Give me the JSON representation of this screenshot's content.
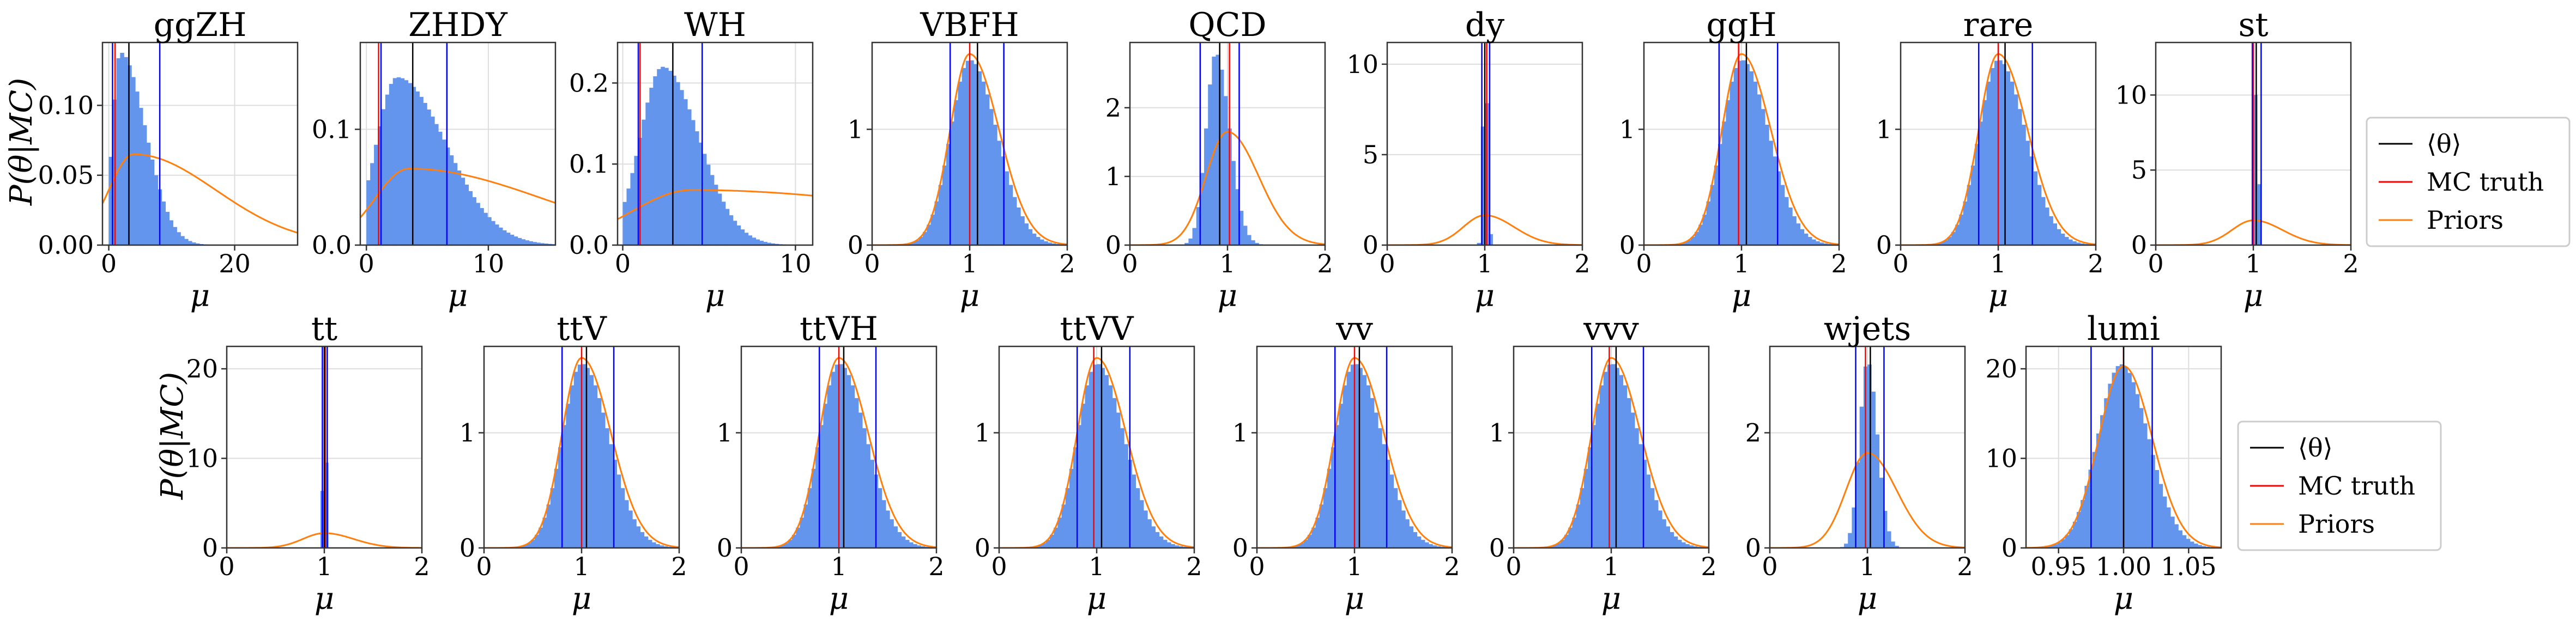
{
  "colors": {
    "hist": "#6495ed",
    "mean": "#000000",
    "truth": "#ff0000",
    "prior": "#ff7f0e",
    "interval": "#0000ff",
    "grid": "#dddddd"
  },
  "ylabel": "P(θ|MC)",
  "legend": {
    "mean": "⟨θ⟩",
    "truth": "MC truth",
    "priors": "Priors"
  },
  "chart_data": [
    {
      "type": "histogram",
      "title": "ggZH",
      "xlabel": "μ",
      "xlim": [
        -1,
        30
      ],
      "ylim": [
        0,
        0.145
      ],
      "xticks": [
        0,
        20
      ],
      "xtick_labels": [
        "0",
        "20"
      ],
      "yticks": [
        0,
        0.05,
        0.1
      ],
      "ytick_labels": [
        "0.00",
        "0.05",
        "0.10"
      ],
      "hist": {
        "shape": "skew",
        "peak": 1.8,
        "sl": 1.2,
        "sr": 4.0,
        "height": 0.138,
        "range": [
          0,
          30
        ],
        "bins": 50
      },
      "prior": {
        "shape": "skew",
        "peak": 4,
        "sl": 4,
        "sr": 13,
        "height": 0.065
      },
      "mean": 3.2,
      "truth": 1.0,
      "interval": [
        0.6,
        8.1
      ],
      "ylabel": true,
      "row": 0,
      "col": 0
    },
    {
      "type": "histogram",
      "title": "ZHDY",
      "xlabel": "μ",
      "xlim": [
        -0.5,
        15.5
      ],
      "ylim": [
        0,
        0.175
      ],
      "xticks": [
        0,
        10
      ],
      "xtick_labels": [
        "0",
        "10"
      ],
      "yticks": [
        0,
        0.1
      ],
      "ytick_labels": [
        "0.0",
        "0.1"
      ],
      "hist": {
        "shape": "skew",
        "peak": 2.5,
        "sl": 1.7,
        "sr": 4.0,
        "height": 0.145,
        "range": [
          0,
          15.5
        ],
        "bins": 50
      },
      "prior": {
        "shape": "skew",
        "peak": 3.5,
        "sl": 2.8,
        "sr": 11,
        "height": 0.066
      },
      "mean": 3.8,
      "truth": 1.0,
      "interval": [
        1.2,
        6.6
      ],
      "row": 0,
      "col": 1
    },
    {
      "type": "histogram",
      "title": "WH",
      "xlabel": "μ",
      "xlim": [
        -0.3,
        11
      ],
      "ylim": [
        0,
        0.25
      ],
      "xticks": [
        0,
        10
      ],
      "xtick_labels": [
        "0",
        "10"
      ],
      "yticks": [
        0,
        0.1,
        0.2
      ],
      "ytick_labels": [
        "0.0",
        "0.1",
        "0.2"
      ],
      "hist": {
        "shape": "skew",
        "peak": 2.3,
        "sl": 1.3,
        "sr": 2.1,
        "height": 0.22,
        "range": [
          0,
          11
        ],
        "bins": 50
      },
      "prior": {
        "shape": "skew",
        "peak": 4,
        "sl": 3.5,
        "sr": 15,
        "height": 0.068
      },
      "mean": 2.9,
      "truth": 1.0,
      "interval": [
        0.9,
        4.6
      ],
      "row": 0,
      "col": 2
    },
    {
      "type": "histogram",
      "title": "VBFH",
      "xlabel": "μ",
      "xlim": [
        0,
        2
      ],
      "ylim": [
        0,
        1.75
      ],
      "xticks": [
        0,
        1,
        2
      ],
      "xtick_labels": [
        "0",
        "1",
        "2"
      ],
      "yticks": [
        0,
        1
      ],
      "ytick_labels": [
        "0",
        "1"
      ],
      "hist": {
        "shape": "skew",
        "peak": 1.0,
        "sl": 0.2,
        "sr": 0.28,
        "height": 1.6,
        "range": [
          0,
          2
        ],
        "bins": 50
      },
      "prior": {
        "shape": "skew",
        "peak": 1.0,
        "sl": 0.2,
        "sr": 0.3,
        "height": 1.65
      },
      "mean": 1.08,
      "truth": 1.0,
      "interval": [
        0.8,
        1.35
      ],
      "row": 0,
      "col": 3
    },
    {
      "type": "histogram",
      "title": "QCD",
      "xlabel": "μ",
      "xlim": [
        0,
        2
      ],
      "ylim": [
        0,
        2.95
      ],
      "xticks": [
        0,
        1,
        2
      ],
      "xtick_labels": [
        "0",
        "1",
        "2"
      ],
      "yticks": [
        0,
        1,
        2
      ],
      "ytick_labels": [
        "0",
        "1",
        "2"
      ],
      "hist": {
        "shape": "skew",
        "peak": 0.88,
        "sl": 0.1,
        "sr": 0.14,
        "height": 2.8,
        "range": [
          0,
          2
        ],
        "bins": 50
      },
      "prior": {
        "shape": "skew",
        "peak": 1.0,
        "sl": 0.22,
        "sr": 0.32,
        "height": 1.65
      },
      "mean": 0.92,
      "truth": 1.02,
      "interval": [
        0.72,
        1.12
      ],
      "row": 0,
      "col": 4
    },
    {
      "type": "histogram",
      "title": "dy",
      "xlabel": "μ",
      "xlim": [
        0,
        2
      ],
      "ylim": [
        0,
        11.2
      ],
      "xticks": [
        0,
        1,
        2
      ],
      "xtick_labels": [
        "0",
        "1",
        "2"
      ],
      "yticks": [
        0,
        5,
        10
      ],
      "ytick_labels": [
        "0",
        "5",
        "10"
      ],
      "hist": {
        "shape": "skew",
        "peak": 1.0,
        "sl": 0.02,
        "sr": 0.025,
        "height": 10.8,
        "range": [
          0,
          2
        ],
        "bins": 50
      },
      "prior": {
        "shape": "skew",
        "peak": 1.0,
        "sl": 0.22,
        "sr": 0.3,
        "height": 1.65
      },
      "mean": 1.0,
      "truth": 1.02,
      "interval": [
        0.97,
        1.05
      ],
      "row": 0,
      "col": 5
    },
    {
      "type": "histogram",
      "title": "ggH",
      "xlabel": "μ",
      "xlim": [
        0,
        2
      ],
      "ylim": [
        0,
        1.75
      ],
      "xticks": [
        0,
        1,
        2
      ],
      "xtick_labels": [
        "0",
        "1",
        "2"
      ],
      "yticks": [
        0,
        1
      ],
      "ytick_labels": [
        "0",
        "1"
      ],
      "hist": {
        "shape": "skew",
        "peak": 1.0,
        "sl": 0.2,
        "sr": 0.28,
        "height": 1.6,
        "range": [
          0,
          2
        ],
        "bins": 50
      },
      "prior": {
        "shape": "skew",
        "peak": 1.0,
        "sl": 0.2,
        "sr": 0.3,
        "height": 1.65
      },
      "mean": 1.05,
      "truth": 0.97,
      "interval": [
        0.77,
        1.37
      ],
      "row": 0,
      "col": 6
    },
    {
      "type": "histogram",
      "title": "rare",
      "xlabel": "μ",
      "xlim": [
        0,
        2
      ],
      "ylim": [
        0,
        1.75
      ],
      "xticks": [
        0,
        1,
        2
      ],
      "xtick_labels": [
        "0",
        "1",
        "2"
      ],
      "yticks": [
        0,
        1
      ],
      "ytick_labels": [
        "0",
        "1"
      ],
      "hist": {
        "shape": "skew",
        "peak": 1.0,
        "sl": 0.2,
        "sr": 0.28,
        "height": 1.6,
        "range": [
          0,
          2
        ],
        "bins": 50
      },
      "prior": {
        "shape": "skew",
        "peak": 1.0,
        "sl": 0.2,
        "sr": 0.3,
        "height": 1.65
      },
      "mean": 1.07,
      "truth": 1.0,
      "interval": [
        0.8,
        1.35
      ],
      "row": 0,
      "col": 7
    },
    {
      "type": "histogram",
      "title": "st",
      "xlabel": "μ",
      "xlim": [
        0,
        2
      ],
      "ylim": [
        0,
        13.5
      ],
      "xticks": [
        0,
        1,
        2
      ],
      "xtick_labels": [
        "0",
        "1",
        "2"
      ],
      "yticks": [
        0,
        5,
        10
      ],
      "ytick_labels": [
        "0",
        "5",
        "10"
      ],
      "hist": {
        "shape": "skew",
        "peak": 1.03,
        "sl": 0.015,
        "sr": 0.02,
        "height": 12.5,
        "range": [
          0,
          2
        ],
        "bins": 50
      },
      "prior": {
        "shape": "skew",
        "peak": 1.0,
        "sl": 0.22,
        "sr": 0.3,
        "height": 1.65
      },
      "mean": 1.03,
      "truth": 1.0,
      "interval": [
        0.99,
        1.08
      ],
      "row": 0,
      "col": 8
    },
    {
      "type": "histogram",
      "title": "tt",
      "xlabel": "μ",
      "xlim": [
        0,
        2
      ],
      "ylim": [
        0,
        22.5
      ],
      "xticks": [
        0,
        1,
        2
      ],
      "xtick_labels": [
        "0",
        "1",
        "2"
      ],
      "yticks": [
        0,
        10,
        20
      ],
      "ytick_labels": [
        "0",
        "10",
        "20"
      ],
      "hist": {
        "shape": "skew",
        "peak": 1.0,
        "sl": 0.013,
        "sr": 0.016,
        "height": 20.8,
        "range": [
          0,
          2
        ],
        "bins": 50
      },
      "prior": {
        "shape": "skew",
        "peak": 1.0,
        "sl": 0.22,
        "sr": 0.3,
        "height": 1.65
      },
      "mean": 1.0,
      "truth": 1.01,
      "interval": [
        0.98,
        1.03
      ],
      "ylabel": true,
      "row": 1,
      "col": 0
    },
    {
      "type": "histogram",
      "title": "ttV",
      "xlabel": "μ",
      "xlim": [
        0,
        2
      ],
      "ylim": [
        0,
        1.75
      ],
      "xticks": [
        0,
        1,
        2
      ],
      "xtick_labels": [
        "0",
        "1",
        "2"
      ],
      "yticks": [
        0,
        1
      ],
      "ytick_labels": [
        "0",
        "1"
      ],
      "hist": {
        "shape": "skew",
        "peak": 1.0,
        "sl": 0.2,
        "sr": 0.28,
        "height": 1.6,
        "range": [
          0,
          2
        ],
        "bins": 50
      },
      "prior": {
        "shape": "skew",
        "peak": 1.0,
        "sl": 0.2,
        "sr": 0.3,
        "height": 1.65
      },
      "mean": 1.05,
      "truth": 1.0,
      "interval": [
        0.8,
        1.33
      ],
      "row": 1,
      "col": 1
    },
    {
      "type": "histogram",
      "title": "ttVH",
      "xlabel": "μ",
      "xlim": [
        0,
        2
      ],
      "ylim": [
        0,
        1.75
      ],
      "xticks": [
        0,
        1,
        2
      ],
      "xtick_labels": [
        "0",
        "1",
        "2"
      ],
      "yticks": [
        0,
        1
      ],
      "ytick_labels": [
        "0",
        "1"
      ],
      "hist": {
        "shape": "skew",
        "peak": 1.0,
        "sl": 0.2,
        "sr": 0.28,
        "height": 1.6,
        "range": [
          0,
          2
        ],
        "bins": 50
      },
      "prior": {
        "shape": "skew",
        "peak": 1.0,
        "sl": 0.2,
        "sr": 0.3,
        "height": 1.65
      },
      "mean": 1.05,
      "truth": 1.0,
      "interval": [
        0.8,
        1.38
      ],
      "row": 1,
      "col": 2
    },
    {
      "type": "histogram",
      "title": "ttVV",
      "xlabel": "μ",
      "xlim": [
        0,
        2
      ],
      "ylim": [
        0,
        1.75
      ],
      "xticks": [
        0,
        1,
        2
      ],
      "xtick_labels": [
        "0",
        "1",
        "2"
      ],
      "yticks": [
        0,
        1
      ],
      "ytick_labels": [
        "0",
        "1"
      ],
      "hist": {
        "shape": "skew",
        "peak": 1.0,
        "sl": 0.2,
        "sr": 0.28,
        "height": 1.6,
        "range": [
          0,
          2
        ],
        "bins": 50
      },
      "prior": {
        "shape": "skew",
        "peak": 1.0,
        "sl": 0.2,
        "sr": 0.3,
        "height": 1.65
      },
      "mean": 1.05,
      "truth": 0.97,
      "interval": [
        0.8,
        1.34
      ],
      "row": 1,
      "col": 3
    },
    {
      "type": "histogram",
      "title": "vv",
      "xlabel": "μ",
      "xlim": [
        0,
        2
      ],
      "ylim": [
        0,
        1.75
      ],
      "xticks": [
        0,
        1,
        2
      ],
      "xtick_labels": [
        "0",
        "1",
        "2"
      ],
      "yticks": [
        0,
        1
      ],
      "ytick_labels": [
        "0",
        "1"
      ],
      "hist": {
        "shape": "skew",
        "peak": 1.0,
        "sl": 0.2,
        "sr": 0.28,
        "height": 1.6,
        "range": [
          0,
          2
        ],
        "bins": 50
      },
      "prior": {
        "shape": "skew",
        "peak": 1.0,
        "sl": 0.2,
        "sr": 0.3,
        "height": 1.65
      },
      "mean": 1.05,
      "truth": 1.0,
      "interval": [
        0.8,
        1.33
      ],
      "row": 1,
      "col": 4
    },
    {
      "type": "histogram",
      "title": "vvv",
      "xlabel": "μ",
      "xlim": [
        0,
        2
      ],
      "ylim": [
        0,
        1.75
      ],
      "xticks": [
        0,
        1,
        2
      ],
      "xtick_labels": [
        "0",
        "1",
        "2"
      ],
      "yticks": [
        0,
        1
      ],
      "ytick_labels": [
        "0",
        "1"
      ],
      "hist": {
        "shape": "skew",
        "peak": 1.0,
        "sl": 0.2,
        "sr": 0.28,
        "height": 1.6,
        "range": [
          0,
          2
        ],
        "bins": 50
      },
      "prior": {
        "shape": "skew",
        "peak": 1.0,
        "sl": 0.2,
        "sr": 0.3,
        "height": 1.65
      },
      "mean": 1.05,
      "truth": 0.98,
      "interval": [
        0.8,
        1.33
      ],
      "row": 1,
      "col": 5
    },
    {
      "type": "histogram",
      "title": "wjets",
      "xlabel": "μ",
      "xlim": [
        0,
        2
      ],
      "ylim": [
        0,
        3.5
      ],
      "xticks": [
        0,
        1,
        2
      ],
      "xtick_labels": [
        "0",
        "1",
        "2"
      ],
      "yticks": [
        0,
        2
      ],
      "ytick_labels": [
        "0",
        "2"
      ],
      "hist": {
        "shape": "skew",
        "peak": 1.0,
        "sl": 0.08,
        "sr": 0.1,
        "height": 3.25,
        "range": [
          0,
          2
        ],
        "bins": 50
      },
      "prior": {
        "shape": "skew",
        "peak": 1.0,
        "sl": 0.22,
        "sr": 0.3,
        "height": 1.65
      },
      "mean": 1.03,
      "truth": 0.98,
      "interval": [
        0.88,
        1.17
      ],
      "row": 1,
      "col": 6
    },
    {
      "type": "histogram",
      "title": "lumi",
      "xlabel": "μ",
      "xlim": [
        0.925,
        1.075
      ],
      "ylim": [
        0,
        22.5
      ],
      "xticks": [
        0.95,
        1.0,
        1.05
      ],
      "xtick_labels": [
        "0.95",
        "1.00",
        "1.05"
      ],
      "yticks": [
        0,
        10,
        20
      ],
      "ytick_labels": [
        "0",
        "10",
        "20"
      ],
      "hist": {
        "shape": "skew",
        "peak": 0.998,
        "sl": 0.018,
        "sr": 0.021,
        "height": 20.5,
        "range": [
          0.925,
          1.075
        ],
        "bins": 50
      },
      "prior": {
        "shape": "skew",
        "peak": 1.0,
        "sl": 0.019,
        "sr": 0.022,
        "height": 20.3
      },
      "mean": 1.0,
      "truth": 1.0,
      "interval": [
        0.975,
        1.022
      ],
      "row": 1,
      "col": 7
    }
  ]
}
